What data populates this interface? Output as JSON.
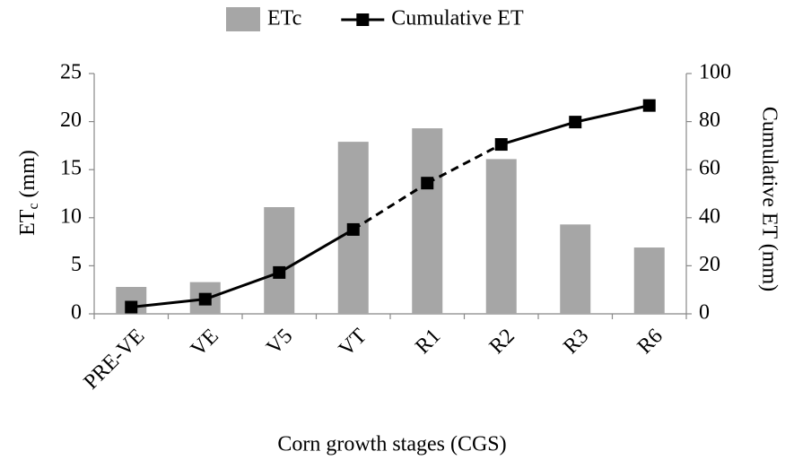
{
  "chart_data": {
    "type": "bar-line",
    "categories": [
      "PRE-VE",
      "VE",
      "V5",
      "VT",
      "R1",
      "R2",
      "R3",
      "R6"
    ],
    "series": [
      {
        "name": "ETc",
        "type": "bar",
        "color": "#a6a6a6",
        "values": [
          2.8,
          3.3,
          11.1,
          17.9,
          19.3,
          16.1,
          9.3,
          6.9
        ]
      },
      {
        "name": "Cumulative ET",
        "type": "line",
        "axis": "y2",
        "color": "#000000",
        "values": [
          2.8,
          6.1,
          17.2,
          35.1,
          54.4,
          70.5,
          79.8,
          86.7
        ],
        "dashed_segments": [
          3,
          4
        ]
      }
    ],
    "ylabel": [
      "ET",
      "c",
      "(mm)"
    ],
    "y2label": "Cumulative ET (mm)",
    "xlabel": "Corn growth stages (CGS)",
    "ylim": [
      0,
      25
    ],
    "yticks": [
      0,
      5,
      10,
      15,
      20,
      25
    ],
    "y2lim": [
      0,
      100
    ],
    "y2ticks": [
      0,
      20,
      40,
      60,
      80,
      100
    ],
    "grid": false,
    "legend": "top"
  }
}
